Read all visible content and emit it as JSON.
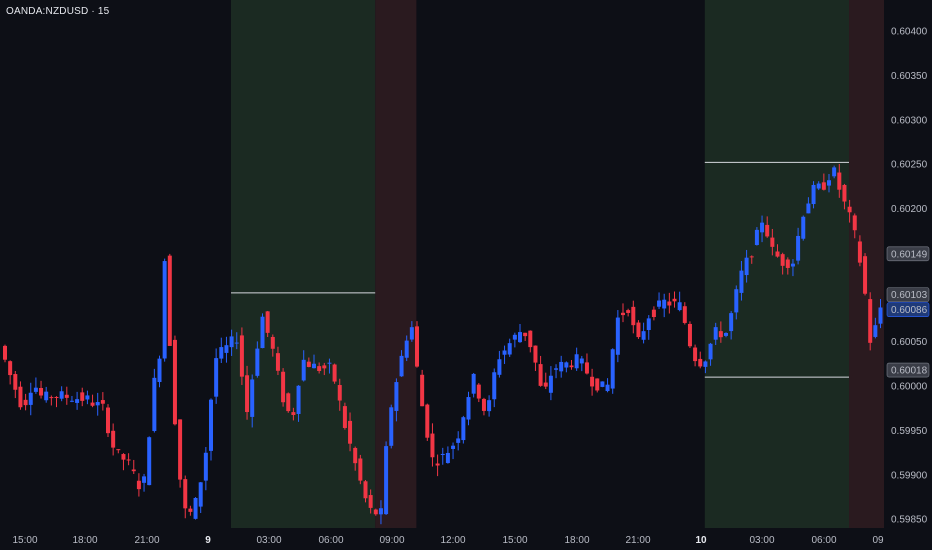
{
  "header": {
    "symbol": "OANDA:NZDUSD · 15"
  },
  "chart_data": {
    "type": "candlestick",
    "title": "OANDA:NZDUSD · 15",
    "yticks": [
      "0.60400",
      "0.60350",
      "0.60300",
      "0.60250",
      "0.60200",
      "0.60050",
      "0.60000",
      "0.59950",
      "0.59900",
      "0.59850"
    ],
    "xticks": [
      "15:00",
      "18:00",
      "21:00",
      "9",
      "03:00",
      "06:00",
      "09:00",
      "12:00",
      "15:00",
      "18:00",
      "21:00",
      "10",
      "03:00",
      "06:00",
      "09"
    ],
    "price_labels": [
      "0.60149",
      "0.60103",
      "0.60086",
      "0.60018"
    ],
    "last_price": "0.60086",
    "ylim": [
      0.5984,
      0.60435
    ],
    "zones": [
      {
        "type": "session",
        "color": "#1b2a22",
        "from": "9 01:00",
        "to": "9 08:00"
      },
      {
        "type": "session",
        "color": "#2a1a1f",
        "from": "9 08:00",
        "to": "9 10:00"
      },
      {
        "type": "session",
        "color": "#1b2a22",
        "from": "10 00:00",
        "to": "10 07:00"
      },
      {
        "type": "session",
        "color": "#2a1a1f",
        "from": "10 07:00",
        "to": "10 09:00"
      }
    ],
    "levels": [
      {
        "price": 0.60105,
        "from": "9 01:00",
        "to": "9 08:00"
      },
      {
        "price": 0.60252,
        "from": "10 00:00",
        "to": "10 07:00"
      },
      {
        "price": 0.6001,
        "from": "10 00:00",
        "to": "10 07:00"
      }
    ],
    "colors": {
      "up": "#2962ff",
      "down": "#f23645",
      "background": "#0d0f16"
    }
  }
}
